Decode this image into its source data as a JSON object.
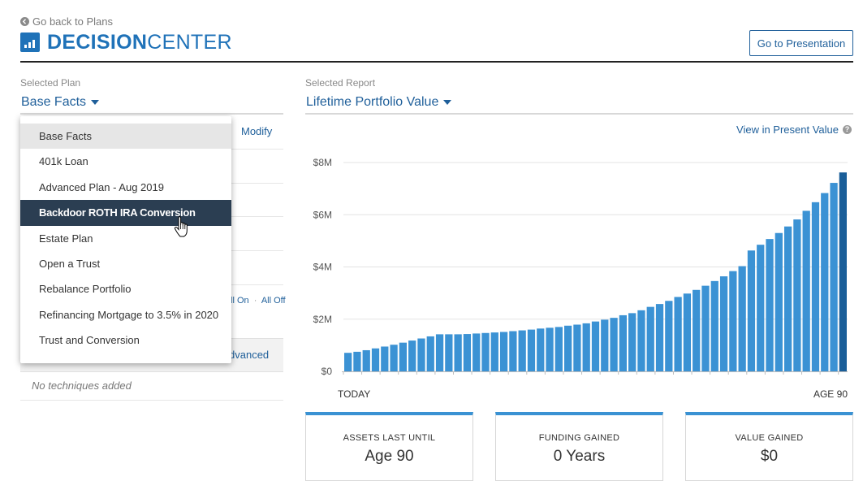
{
  "header": {
    "back_link": "Go back to Plans",
    "brand_bold": "DECISION",
    "brand_light": "CENTER",
    "goto_presentation": "Go to Presentation"
  },
  "plan": {
    "label": "Selected Plan",
    "value": "Base Facts",
    "modify": "Modify",
    "all_on": "ll On",
    "all_off": "All Off",
    "separator": "·",
    "advanced": "dvanced",
    "no_techniques": "No techniques added"
  },
  "dropdown": {
    "items": [
      "Base Facts",
      "401k Loan",
      "Advanced Plan - Aug 2019",
      "Backdoor ROTH IRA Conversion",
      "Estate Plan",
      "Open a Trust",
      "Rebalance Portfolio",
      "Refinancing Mortgage to 3.5% in 2020",
      "Trust and Conversion"
    ],
    "selected": "Base Facts",
    "hovered": "Backdoor ROTH IRA Conversion"
  },
  "report": {
    "label": "Selected Report",
    "value": "Lifetime Portfolio Value",
    "present_value_link": "View in Present Value"
  },
  "chart_data": {
    "type": "bar",
    "title": "Lifetime Portfolio Value",
    "x_start_label": "TODAY",
    "x_end_label": "AGE 90",
    "y_ticks": [
      "$0",
      "$2M",
      "$4M",
      "$6M",
      "$8M"
    ],
    "ylim": [
      0,
      8
    ],
    "y_unit": "millions USD",
    "values": [
      0.71,
      0.75,
      0.81,
      0.88,
      0.95,
      1.02,
      1.1,
      1.18,
      1.26,
      1.34,
      1.42,
      1.42,
      1.42,
      1.43,
      1.45,
      1.47,
      1.49,
      1.51,
      1.54,
      1.57,
      1.6,
      1.64,
      1.67,
      1.7,
      1.75,
      1.79,
      1.84,
      1.91,
      1.98,
      2.05,
      2.15,
      2.23,
      2.34,
      2.47,
      2.58,
      2.7,
      2.85,
      2.98,
      3.12,
      3.28,
      3.46,
      3.64,
      3.84,
      4.03,
      4.63,
      4.85,
      5.07,
      5.3,
      5.55,
      5.82,
      6.15,
      6.48,
      6.83,
      7.22,
      7.62
    ],
    "highlight_last": true,
    "colors": {
      "bar": "#3b92d4",
      "last_bar": "#1a5e99",
      "grid": "#e3e3e3"
    }
  },
  "stats": [
    {
      "label": "ASSETS LAST UNTIL",
      "value": "Age 90"
    },
    {
      "label": "FUNDING GAINED",
      "value": "0 Years"
    },
    {
      "label": "VALUE GAINED",
      "value": "$0"
    }
  ]
}
